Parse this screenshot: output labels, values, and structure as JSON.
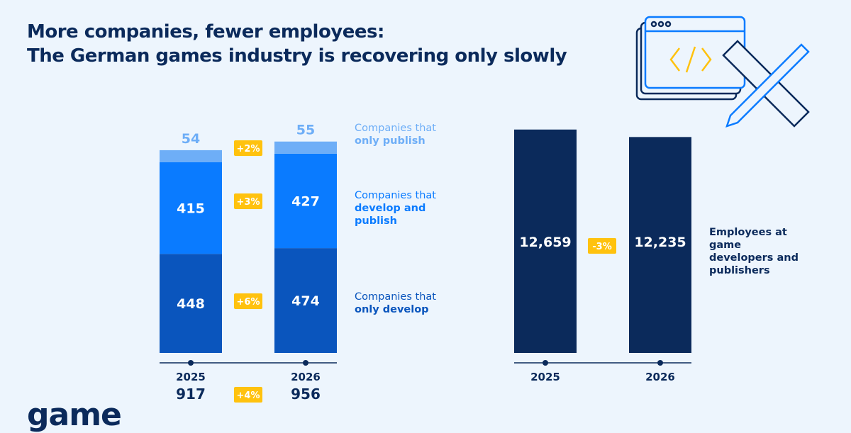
{
  "title": {
    "line1": "More companies, fewer employees:",
    "line2": "The German games industry is recovering only slowly"
  },
  "logo": "game",
  "colors": {
    "background": "#edf5fd",
    "navy": "#0b2a5b",
    "only_develop": "#0a55bd",
    "develop_publish": "#0a7bff",
    "only_publish": "#6eaef7",
    "badge": "#ffc20e"
  },
  "chart_data": [
    {
      "type": "bar",
      "stacked": true,
      "categories": [
        "2025",
        "2026"
      ],
      "series": [
        {
          "name": "Companies that only develop",
          "values": [
            448,
            474
          ],
          "change": "+6%"
        },
        {
          "name": "Companies that develop and publish",
          "values": [
            415,
            427
          ],
          "change": "+3%"
        },
        {
          "name": "Companies that only publish",
          "values": [
            54,
            55
          ],
          "change": "+2%"
        }
      ],
      "totals": [
        917,
        956
      ],
      "total_change": "+4%",
      "legend": [
        {
          "light": "Companies that",
          "bold": "only publish"
        },
        {
          "light": "Companies that",
          "bold": "develop and publish"
        },
        {
          "light": "Companies that",
          "bold": "only develop"
        }
      ]
    },
    {
      "type": "bar",
      "categories": [
        "2025",
        "2026"
      ],
      "series": [
        {
          "name": "Employees at game developers and publishers",
          "values": [
            12659,
            12235
          ],
          "labels": [
            "12,659",
            "12,235"
          ],
          "change": "-3%"
        }
      ],
      "legend": "Employees at game developers and publishers"
    }
  ],
  "illustration": "browser-code-pencil-ruler-icon"
}
